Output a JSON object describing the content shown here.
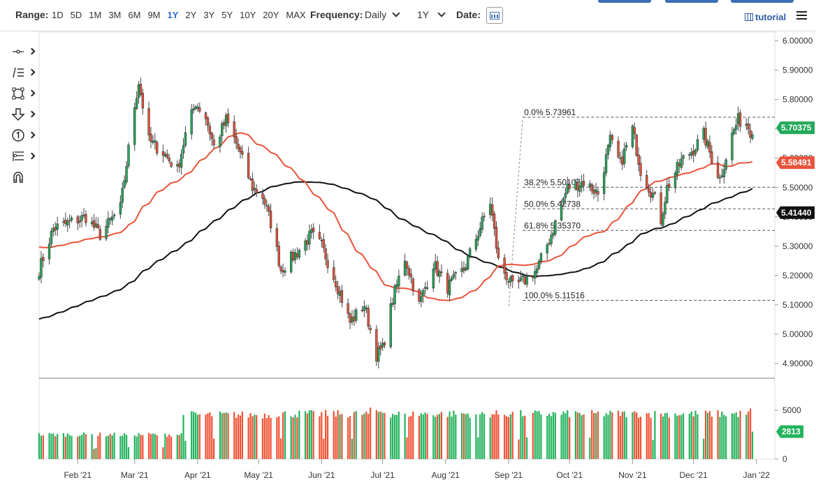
{
  "toolbar": {
    "range_label": "Range:",
    "ranges": [
      "1D",
      "5D",
      "1M",
      "3M",
      "6M",
      "9M",
      "1Y",
      "2Y",
      "3Y",
      "5Y",
      "10Y",
      "20Y",
      "MAX"
    ],
    "active_range": "1Y",
    "frequency_label": "Frequency:",
    "frequency_value": "Daily",
    "period_value": "1Y",
    "date_label": "Date:",
    "tutorial_label": "tutorial",
    "icons": [
      "calendar-icon",
      "film-icon",
      "menu-icon"
    ]
  },
  "drawing_tools": [
    "crosshair-tool",
    "trend-tool",
    "rectangle-tool",
    "arrow-tool",
    "counter-tool",
    "fibonacci-tool",
    "magnet-tool"
  ],
  "chart_data": {
    "type": "candlestick",
    "ylim": [
      4.85,
      6.03
    ],
    "y_ticks": [
      "6.00000",
      "5.90000",
      "5.80000",
      "5.70000",
      "5.60000",
      "5.50000",
      "5.40000",
      "5.30000",
      "5.20000",
      "5.10000",
      "5.00000",
      "4.90000"
    ],
    "x_ticks": [
      "Feb '21",
      "Mar '21",
      "Apr '21",
      "May '21",
      "Jun '21",
      "Jul '21",
      "Aug '21",
      "Sep '21",
      "Oct '21",
      "Nov '21",
      "Dec '21",
      "Jan '22"
    ],
    "x_tick_dates": [
      "2021-02-01",
      "2021-03-01",
      "2021-04-01",
      "2021-05-01",
      "2021-06-01",
      "2021-07-01",
      "2021-08-01",
      "2021-09-01",
      "2021-10-01",
      "2021-11-01",
      "2021-12-01",
      "2022-01-01"
    ],
    "x_range": [
      "2021-01-13",
      "2022-01-10"
    ],
    "price_waypoints": [
      [
        "2021-01-13",
        5.22
      ],
      [
        "2021-01-20",
        5.36
      ],
      [
        "2021-01-28",
        5.38
      ],
      [
        "2021-02-05",
        5.4
      ],
      [
        "2021-02-12",
        5.34
      ],
      [
        "2021-02-22",
        5.43
      ],
      [
        "2021-03-01",
        5.78
      ],
      [
        "2021-03-03",
        5.86
      ],
      [
        "2021-03-08",
        5.66
      ],
      [
        "2021-03-15",
        5.62
      ],
      [
        "2021-03-22",
        5.56
      ],
      [
        "2021-03-26",
        5.68
      ],
      [
        "2021-03-31",
        5.79
      ],
      [
        "2021-04-05",
        5.74
      ],
      [
        "2021-04-09",
        5.64
      ],
      [
        "2021-04-15",
        5.73
      ],
      [
        "2021-04-20",
        5.65
      ],
      [
        "2021-04-28",
        5.5
      ],
      [
        "2021-05-03",
        5.47
      ],
      [
        "2021-05-07",
        5.38
      ],
      [
        "2021-05-12",
        5.22
      ],
      [
        "2021-05-20",
        5.28
      ],
      [
        "2021-05-27",
        5.34
      ],
      [
        "2021-06-01",
        5.3
      ],
      [
        "2021-06-08",
        5.18
      ],
      [
        "2021-06-15",
        5.04
      ],
      [
        "2021-06-22",
        5.1
      ],
      [
        "2021-06-28",
        4.93
      ],
      [
        "2021-07-01",
        4.95
      ],
      [
        "2021-07-06",
        5.12
      ],
      [
        "2021-07-12",
        5.26
      ],
      [
        "2021-07-19",
        5.1
      ],
      [
        "2021-07-26",
        5.24
      ],
      [
        "2021-08-02",
        5.16
      ],
      [
        "2021-08-10",
        5.22
      ],
      [
        "2021-08-20",
        5.4
      ],
      [
        "2021-08-23",
        5.45
      ],
      [
        "2021-08-27",
        5.25
      ],
      [
        "2021-09-03",
        5.16
      ],
      [
        "2021-09-08",
        5.18
      ],
      [
        "2021-09-15",
        5.22
      ],
      [
        "2021-09-22",
        5.34
      ],
      [
        "2021-09-30",
        5.5
      ],
      [
        "2021-10-08",
        5.52
      ],
      [
        "2021-10-15",
        5.48
      ],
      [
        "2021-10-21",
        5.66
      ],
      [
        "2021-10-26",
        5.58
      ],
      [
        "2021-11-01",
        5.7
      ],
      [
        "2021-11-05",
        5.56
      ],
      [
        "2021-11-12",
        5.46
      ],
      [
        "2021-11-15",
        5.39
      ],
      [
        "2021-11-18",
        5.5
      ],
      [
        "2021-11-25",
        5.59
      ],
      [
        "2021-12-01",
        5.63
      ],
      [
        "2021-12-06",
        5.68
      ],
      [
        "2021-12-10",
        5.6
      ],
      [
        "2021-12-14",
        5.53
      ],
      [
        "2021-12-20",
        5.68
      ],
      [
        "2021-12-23",
        5.73
      ],
      [
        "2021-12-27",
        5.72
      ],
      [
        "2021-12-30",
        5.68
      ]
    ],
    "last_close": 5.68,
    "series": [
      {
        "color": "#e8533b",
        "type": "moving_average"
      },
      {
        "color": "#111111",
        "type": "moving_average"
      }
    ],
    "fibonacci": [
      {
        "label": "0.0% 5.73961",
        "value": 5.73961
      },
      {
        "label": "38.2% 5.50107",
        "value": 5.50107
      },
      {
        "label": "50.0% 5.42738",
        "value": 5.42738
      },
      {
        "label": "61.8% 5.35370",
        "value": 5.3537
      },
      {
        "label": "100.0% 5.11516",
        "value": 5.11516
      }
    ],
    "fib_start_date": "2021-09-08",
    "fib_end_date": "2022-01-03",
    "price_labels": [
      {
        "text": "5.70375",
        "value": 5.70375,
        "color": "#24a85a"
      },
      {
        "text": "5.58491",
        "value": 5.58491,
        "color": "#e8533b"
      },
      {
        "text": "5.41440",
        "value": 5.4144,
        "color": "#111111"
      }
    ],
    "volume": {
      "ticks": [
        "5000",
        "0"
      ],
      "tick_values": [
        5000,
        0
      ],
      "ylim": [
        0,
        7000
      ],
      "last_label": "2813",
      "last_value": 2813,
      "segments": [
        [
          "2021-01-13",
          2550
        ],
        [
          "2021-03-24",
          2600
        ],
        [
          "2021-03-25",
          4600
        ],
        [
          "2021-05-10",
          4700
        ],
        [
          "2021-06-25",
          4950
        ],
        [
          "2021-07-05",
          4700
        ],
        [
          "2021-09-01",
          4700
        ],
        [
          "2021-12-29",
          5000
        ],
        [
          "2021-12-30",
          2813
        ]
      ],
      "gaps": [
        "2021-02-09",
        "2021-02-10",
        "2021-02-26",
        "2021-03-15",
        "2021-03-26",
        "2021-04-09",
        "2021-05-12",
        "2021-06-02",
        "2021-06-16",
        "2021-07-13",
        "2021-08-17",
        "2021-09-06",
        "2021-09-10",
        "2021-10-11",
        "2021-11-11",
        "2021-12-06"
      ],
      "up_color": "#24b35e",
      "down_color": "#ef5234"
    }
  }
}
